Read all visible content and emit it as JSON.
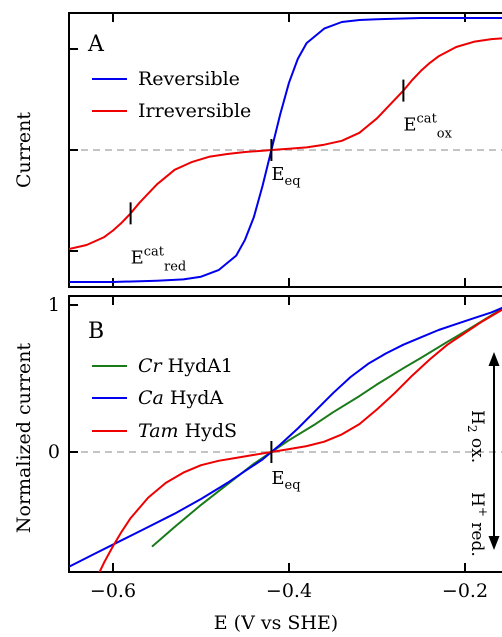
{
  "chart_data": [
    {
      "type": "line",
      "panel_label": "A",
      "ylabel": "Current",
      "xlim": [
        -0.65,
        -0.15
      ],
      "series": [
        {
          "name": "Reversible",
          "color": "#0000ee",
          "x": [
            -0.65,
            -0.6,
            -0.55,
            -0.52,
            -0.5,
            -0.48,
            -0.46,
            -0.45,
            -0.44,
            -0.43,
            -0.42,
            -0.41,
            -0.4,
            -0.39,
            -0.38,
            -0.36,
            -0.34,
            -0.32,
            -0.3,
            -0.25,
            -0.2,
            -0.15
          ],
          "y": [
            -1.0,
            -1.0,
            -0.99,
            -0.98,
            -0.96,
            -0.91,
            -0.8,
            -0.68,
            -0.51,
            -0.27,
            0.0,
            0.27,
            0.51,
            0.69,
            0.81,
            0.92,
            0.97,
            0.985,
            0.99,
            1.0,
            1.0,
            1.0
          ]
        },
        {
          "name": "Irreversible",
          "color": "#ee0000",
          "x": [
            -0.65,
            -0.63,
            -0.61,
            -0.6,
            -0.59,
            -0.58,
            -0.57,
            -0.56,
            -0.55,
            -0.53,
            -0.51,
            -0.49,
            -0.47,
            -0.45,
            -0.43,
            -0.42,
            -0.4,
            -0.38,
            -0.36,
            -0.34,
            -0.32,
            -0.3,
            -0.29,
            -0.28,
            -0.27,
            -0.26,
            -0.25,
            -0.24,
            -0.23,
            -0.21,
            -0.19,
            -0.17,
            -0.15
          ],
          "y": [
            -0.75,
            -0.72,
            -0.66,
            -0.61,
            -0.55,
            -0.48,
            -0.4,
            -0.33,
            -0.26,
            -0.15,
            -0.09,
            -0.05,
            -0.03,
            -0.015,
            -0.005,
            0.0,
            0.01,
            0.02,
            0.04,
            0.07,
            0.13,
            0.24,
            0.31,
            0.38,
            0.45,
            0.53,
            0.6,
            0.66,
            0.71,
            0.78,
            0.82,
            0.84,
            0.85
          ]
        }
      ],
      "annotations": [
        {
          "name": "E_eq",
          "base": "E",
          "sub": "eq",
          "x": -0.42,
          "y": 0.0
        },
        {
          "name": "E_cat_ox",
          "base": "E",
          "sup": "cat",
          "sub": "ox",
          "x": -0.27,
          "y": 0.45
        },
        {
          "name": "E_cat_red",
          "base": "E",
          "sup": "cat",
          "sub": "red",
          "x": -0.58,
          "y": -0.48
        }
      ],
      "legend": "top-left",
      "zero_line": true,
      "grid": false
    },
    {
      "type": "line",
      "panel_label": "B",
      "xlabel": "E (V vs SHE)",
      "ylabel": "Normalized current",
      "xlim": [
        -0.65,
        -0.15
      ],
      "ylim": [
        -0.85,
        1.05
      ],
      "yticks": [
        0,
        1
      ],
      "xticks": [
        -0.6,
        -0.4,
        -0.2
      ],
      "series": [
        {
          "name": "Cr HydA1",
          "name_italic": "Cr",
          "name_rest": " HydA1",
          "color": "#1a7a1a",
          "x": [
            -0.555,
            -0.53,
            -0.5,
            -0.47,
            -0.44,
            -0.42,
            -0.4,
            -0.37,
            -0.35,
            -0.32,
            -0.3,
            -0.27,
            -0.25,
            -0.22,
            -0.2,
            -0.17,
            -0.15
          ],
          "y": [
            -0.64,
            -0.51,
            -0.36,
            -0.22,
            -0.08,
            0.0,
            0.08,
            0.19,
            0.27,
            0.38,
            0.46,
            0.57,
            0.64,
            0.75,
            0.82,
            0.93,
            1.0
          ]
        },
        {
          "name": "Ca HydA",
          "name_italic": "Ca",
          "name_rest": " HydA",
          "color": "#0000ee",
          "x": [
            -0.65,
            -0.62,
            -0.59,
            -0.56,
            -0.53,
            -0.5,
            -0.47,
            -0.45,
            -0.43,
            -0.42,
            -0.41,
            -0.39,
            -0.37,
            -0.35,
            -0.33,
            -0.31,
            -0.29,
            -0.27,
            -0.25,
            -0.23,
            -0.21,
            -0.19,
            -0.17,
            -0.15
          ],
          "y": [
            -0.78,
            -0.69,
            -0.6,
            -0.51,
            -0.42,
            -0.32,
            -0.21,
            -0.13,
            -0.05,
            0.0,
            0.05,
            0.16,
            0.28,
            0.4,
            0.51,
            0.6,
            0.67,
            0.73,
            0.78,
            0.83,
            0.87,
            0.91,
            0.95,
            1.0
          ]
        },
        {
          "name": "Tam HydS",
          "name_italic": "Tam",
          "name_rest": " HydS",
          "color": "#ee0000",
          "x": [
            -0.618,
            -0.61,
            -0.6,
            -0.59,
            -0.58,
            -0.57,
            -0.56,
            -0.54,
            -0.52,
            -0.5,
            -0.48,
            -0.46,
            -0.44,
            -0.42,
            -0.4,
            -0.38,
            -0.36,
            -0.34,
            -0.32,
            -0.3,
            -0.28,
            -0.26,
            -0.24,
            -0.22,
            -0.2,
            -0.18,
            -0.16,
            -0.15
          ],
          "y": [
            -0.85,
            -0.75,
            -0.64,
            -0.54,
            -0.45,
            -0.38,
            -0.31,
            -0.21,
            -0.14,
            -0.09,
            -0.06,
            -0.04,
            -0.02,
            0.0,
            0.02,
            0.04,
            0.07,
            0.12,
            0.19,
            0.29,
            0.4,
            0.52,
            0.63,
            0.73,
            0.81,
            0.89,
            0.96,
            1.0
          ]
        }
      ],
      "annotations": [
        {
          "name": "E_eq",
          "base": "E",
          "sub": "eq",
          "x": -0.42,
          "y": 0.0
        }
      ],
      "side_labels": {
        "upper": "H",
        "upper_sub": "2",
        "upper_rest": " ox.",
        "lower": "H",
        "lower_sup": "+",
        "lower_rest": " red."
      },
      "legend": "top-left",
      "zero_line": true,
      "grid": false
    }
  ]
}
